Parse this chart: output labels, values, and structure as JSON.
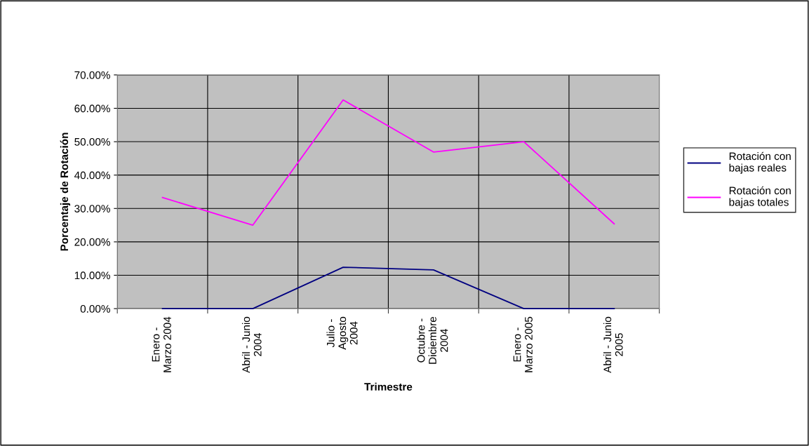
{
  "chart_data": {
    "type": "line",
    "xlabel": "Trimestre",
    "ylabel": "Porcentaje de Rotación",
    "categories": [
      "Enero -\nMarzo 2004",
      "Abril - Junio\n2004",
      "Julio -\nAgosto\n2004",
      "Octubre -\nDiciembre\n2004",
      "Enero -\nMarzo 2005",
      "Abril - Junio\n2005"
    ],
    "series": [
      {
        "name": "Rotación con\nbajas reales",
        "color": "#000080",
        "values": [
          0,
          0,
          12.4,
          11.6,
          0,
          0
        ]
      },
      {
        "name": "Rotación con\nbajas totales",
        "color": "#ff00ff",
        "values": [
          33.3,
          25.0,
          62.5,
          46.9,
          50.0,
          25.4
        ]
      }
    ],
    "ylim": [
      0,
      70
    ],
    "yticks": [
      {
        "value": 0,
        "label": "0.00%"
      },
      {
        "value": 10,
        "label": "10.00%"
      },
      {
        "value": 20,
        "label": "20.00%"
      },
      {
        "value": 30,
        "label": "30.00%"
      },
      {
        "value": 40,
        "label": "40.00%"
      },
      {
        "value": 50,
        "label": "50.00%"
      },
      {
        "value": 60,
        "label": "60.00%"
      },
      {
        "value": 70,
        "label": "70.00%"
      }
    ],
    "grid": true,
    "legend": "right",
    "marker": "none",
    "line_style": "solid"
  }
}
